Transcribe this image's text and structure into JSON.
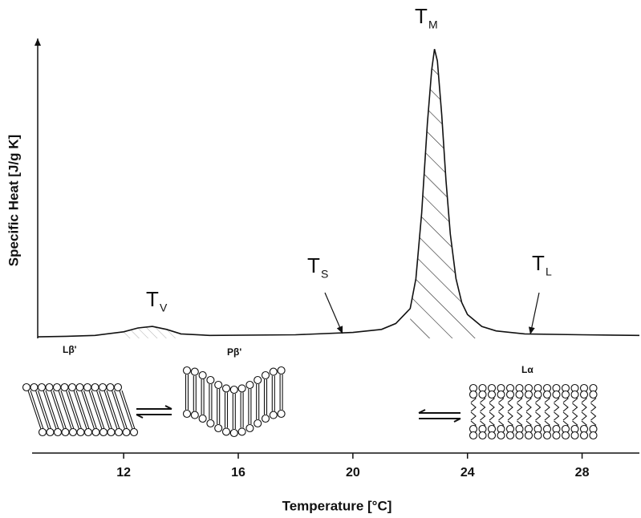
{
  "chart_data": {
    "type": "line",
    "x_label": "Temperature [°C]",
    "y_label": "Specific Heat [J/g K]",
    "x": [
      9,
      10,
      11,
      12,
      12.5,
      13,
      13.5,
      14,
      15,
      18,
      20,
      21,
      21.5,
      22,
      22.2,
      22.4,
      22.6,
      22.75,
      22.85,
      22.95,
      23.1,
      23.25,
      23.4,
      23.6,
      23.8,
      24,
      24.5,
      25,
      26,
      28,
      30
    ],
    "values": [
      0.05,
      0.07,
      0.1,
      0.22,
      0.35,
      0.4,
      0.3,
      0.15,
      0.1,
      0.12,
      0.2,
      0.3,
      0.5,
      1.0,
      2.0,
      4.2,
      7.2,
      9.0,
      9.7,
      9.3,
      7.5,
      5.3,
      3.5,
      2.0,
      1.2,
      0.8,
      0.4,
      0.25,
      0.15,
      0.12,
      0.1
    ],
    "color": "#111111",
    "xlim": [
      9,
      30
    ],
    "ylim": [
      0,
      10
    ],
    "xticks": [
      12,
      16,
      20,
      24,
      28
    ],
    "annotations": [
      {
        "text": "T",
        "subscript": "V"
      },
      {
        "text": "T",
        "subscript": "S"
      },
      {
        "text": "T",
        "subscript": "M"
      },
      {
        "text": "T",
        "subscript": "L"
      }
    ],
    "phase_labels": [
      "Lβ'",
      "Pβ'",
      "Lα"
    ]
  }
}
